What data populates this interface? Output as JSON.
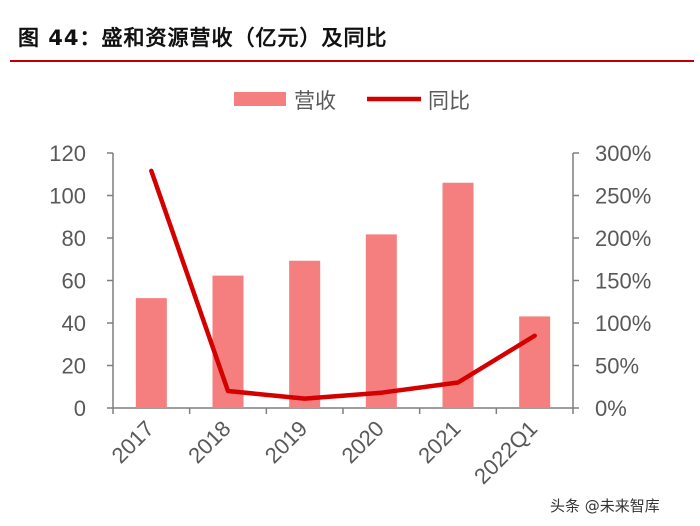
{
  "figure": {
    "title": "图 44：盛和资源营收（亿元）及同比",
    "watermark": "头条 @未来智库"
  },
  "colors": {
    "bar": "#f57e7e",
    "line": "#d40000",
    "title_rule": "#c00000",
    "axis": "#7f7f7f"
  },
  "chart_data": {
    "type": "bar",
    "categories": [
      "2017",
      "2018",
      "2019",
      "2020",
      "2021",
      "2022Q1"
    ],
    "series": [
      {
        "name": "营收",
        "type": "bar",
        "axis": "left",
        "values": [
          51.7,
          62.3,
          69.3,
          81.7,
          106.0,
          43.1
        ]
      },
      {
        "name": "同比",
        "type": "line",
        "axis": "right",
        "values": [
          279,
          20,
          11,
          18,
          30,
          85
        ]
      }
    ],
    "y_left": {
      "min": 0,
      "max": 120,
      "ticks": [
        "0",
        "20",
        "40",
        "60",
        "80",
        "100",
        "120"
      ]
    },
    "y_right": {
      "min": 0,
      "max": 300,
      "ticks": [
        "0%",
        "50%",
        "100%",
        "150%",
        "200%",
        "250%",
        "300%"
      ]
    },
    "legend_position": "top-center",
    "grid": false
  }
}
